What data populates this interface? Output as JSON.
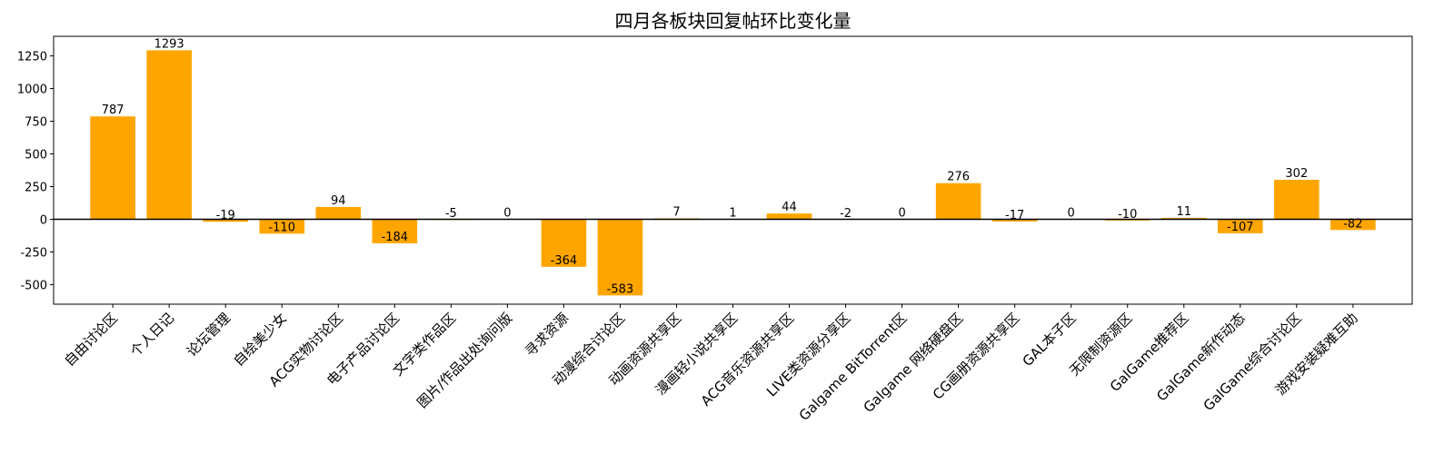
{
  "chart_data": {
    "type": "bar",
    "title": "四月各板块回复帖环比变化量",
    "xlabel": "",
    "ylabel": "",
    "ylim": [
      -650,
      1400
    ],
    "yticks": [
      -500,
      -250,
      0,
      250,
      500,
      750,
      1000,
      1250
    ],
    "bar_color": "#FFA500",
    "zero_line_color": "#000000",
    "grid": false,
    "categories": [
      "自由讨论区",
      "个人日记",
      "论坛管理",
      "自绘美少女",
      "ACG实物讨论区",
      "电子产品讨论区",
      "文字类作品区",
      "图片/作品出处询问版",
      "寻求资源",
      "动漫综合讨论区",
      "动画资源共享区",
      "漫画轻小说共享区",
      "ACG音乐资源共享区",
      "LIVE类资源分享区",
      "Galgame BitTorrent区",
      "Galgame 网络硬盘区",
      "CG画册资源共享区",
      "GAL本子区",
      "无限制资源区",
      "GalGame推荐区",
      "GalGame新作动态",
      "GalGame综合讨论区",
      "游戏安装疑难互助"
    ],
    "values": [
      787,
      1293,
      -19,
      -110,
      94,
      -184,
      -5,
      0,
      -364,
      -583,
      7,
      1,
      44,
      -2,
      0,
      276,
      -17,
      0,
      -10,
      11,
      -107,
      302,
      -82
    ],
    "bar_positions": [
      1,
      2,
      3,
      4,
      5,
      6,
      7,
      8,
      9,
      10,
      11,
      12,
      13,
      14,
      15,
      16,
      17,
      18,
      19,
      20,
      21,
      22,
      23
    ],
    "xtick_positions": [
      1,
      2,
      3,
      4,
      5,
      6,
      7,
      8,
      9,
      10,
      11,
      12,
      13,
      14,
      15,
      16,
      17,
      18,
      19,
      20,
      21,
      22,
      23,
      24
    ],
    "xlim": [
      -0.05,
      24.05
    ]
  }
}
